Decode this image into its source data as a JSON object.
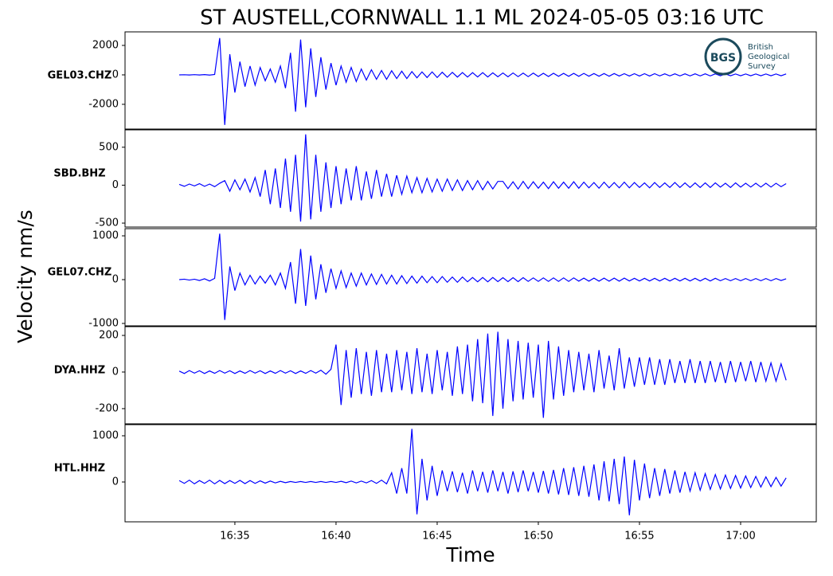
{
  "chart_data": {
    "type": "line",
    "title": "ST AUSTELL,CORNWALL 1.1 ML   2024-05-05 03:16 UTC",
    "xlabel": "Time",
    "ylabel": "Velocity nm/s",
    "color": "#0000ff",
    "logo": {
      "abbr": "BGS",
      "name": [
        "British",
        "Geological",
        "Survey"
      ]
    },
    "xlim": [
      989.57,
      1023.74
    ],
    "xticks": [
      {
        "value": 995,
        "label": "16:35"
      },
      {
        "value": 1000,
        "label": "16:40"
      },
      {
        "value": 1005,
        "label": "16:45"
      },
      {
        "value": 1010,
        "label": "16:50"
      },
      {
        "value": 1015,
        "label": "16:55"
      },
      {
        "value": 1020,
        "label": "17:00"
      }
    ],
    "x": [
      992.25,
      992.5,
      992.75,
      993,
      993.25,
      993.5,
      993.75,
      994,
      994.25,
      994.5,
      994.75,
      995,
      995.25,
      995.5,
      995.75,
      996,
      996.25,
      996.5,
      996.75,
      997,
      997.25,
      997.5,
      997.75,
      998,
      998.25,
      998.5,
      998.75,
      999,
      999.25,
      999.5,
      999.75,
      1000,
      1000.25,
      1000.5,
      1000.75,
      1001,
      1001.25,
      1001.5,
      1001.75,
      1002,
      1002.25,
      1002.5,
      1002.75,
      1003,
      1003.25,
      1003.5,
      1003.75,
      1004,
      1004.25,
      1004.5,
      1004.75,
      1005,
      1005.25,
      1005.5,
      1005.75,
      1006,
      1006.25,
      1006.5,
      1006.75,
      1007,
      1007.25,
      1007.5,
      1007.75,
      1008,
      1008.25,
      1008.5,
      1008.75,
      1009,
      1009.25,
      1009.5,
      1009.75,
      1010,
      1010.25,
      1010.5,
      1010.75,
      1011,
      1011.25,
      1011.5,
      1011.75,
      1012,
      1012.25,
      1012.5,
      1012.75,
      1013,
      1013.25,
      1013.5,
      1013.75,
      1014,
      1014.25,
      1014.5,
      1014.75,
      1015,
      1015.25,
      1015.5,
      1015.75,
      1016,
      1016.25,
      1016.5,
      1016.75,
      1017,
      1017.25,
      1017.5,
      1017.75,
      1018,
      1018.25,
      1018.5,
      1018.75,
      1019,
      1019.25,
      1019.5,
      1019.75,
      1020,
      1020.25,
      1020.5,
      1020.75,
      1021,
      1021.25,
      1021.5,
      1021.75,
      1022,
      1022.25
    ],
    "panels": [
      {
        "label": "GEL03.CHZ",
        "ylim": [
          -3680,
          2920
        ],
        "yticks": [
          -2000,
          0,
          2000
        ],
        "values": [
          0,
          10,
          -10,
          15,
          -10,
          20,
          -15,
          30,
          2500,
          -3400,
          1400,
          -1200,
          900,
          -800,
          600,
          -700,
          500,
          -400,
          400,
          -500,
          600,
          -900,
          1500,
          -2500,
          2400,
          -2200,
          1800,
          -1500,
          1200,
          -1000,
          800,
          -700,
          600,
          -500,
          500,
          -450,
          400,
          -350,
          350,
          -300,
          300,
          -300,
          280,
          -250,
          250,
          -250,
          220,
          -200,
          200,
          -180,
          200,
          -180,
          180,
          -160,
          170,
          -150,
          160,
          -150,
          150,
          -140,
          150,
          -140,
          140,
          -130,
          130,
          -130,
          130,
          -120,
          120,
          -120,
          120,
          -110,
          110,
          -110,
          110,
          -100,
          100,
          -100,
          100,
          -100,
          100,
          -90,
          90,
          -90,
          90,
          -90,
          90,
          -80,
          80,
          -80,
          80,
          -80,
          80,
          -80,
          80,
          -70,
          70,
          -70,
          70,
          -70,
          70,
          -70,
          70,
          -70,
          70,
          -70,
          70,
          -60,
          60,
          -60,
          60,
          -60,
          60,
          -60,
          60,
          -60,
          60,
          -60,
          60,
          -60,
          60
        ]
      },
      {
        "label": "SBD.BHZ",
        "ylim": [
          -552,
          729
        ],
        "yticks": [
          -500,
          0,
          500
        ],
        "values": [
          10,
          -15,
          15,
          -10,
          20,
          -15,
          15,
          -20,
          25,
          60,
          -80,
          70,
          -60,
          80,
          -90,
          100,
          -150,
          200,
          -250,
          220,
          -300,
          350,
          -350,
          400,
          -480,
          670,
          -450,
          400,
          -350,
          300,
          -300,
          250,
          -250,
          220,
          -200,
          250,
          -200,
          180,
          -180,
          200,
          -150,
          150,
          -150,
          130,
          -120,
          120,
          -100,
          100,
          -100,
          90,
          -90,
          80,
          -80,
          80,
          -70,
          70,
          -70,
          60,
          -60,
          60,
          -60,
          50,
          -50,
          50,
          50,
          -45,
          45,
          -50,
          50,
          -45,
          45,
          -40,
          40,
          -45,
          45,
          -40,
          40,
          -40,
          45,
          -40,
          40,
          -35,
          35,
          -40,
          40,
          -35,
          35,
          -35,
          40,
          -35,
          35,
          -30,
          30,
          -35,
          35,
          -30,
          30,
          -30,
          35,
          -30,
          30,
          -30,
          30,
          -30,
          30,
          -30,
          30,
          -25,
          25,
          -30,
          30,
          -25,
          25,
          -25,
          25,
          -25,
          25,
          -25,
          25,
          -20,
          20
        ]
      },
      {
        "label": "GEL07.CHZ",
        "ylim": [
          -1055,
          1164
        ],
        "yticks": [
          -1000,
          0,
          1000
        ],
        "values": [
          0,
          10,
          -10,
          10,
          -20,
          20,
          -30,
          30,
          1050,
          -920,
          300,
          -250,
          150,
          -120,
          100,
          -100,
          80,
          -80,
          100,
          -120,
          150,
          -200,
          400,
          -550,
          700,
          -600,
          550,
          -450,
          350,
          -300,
          250,
          -200,
          200,
          -180,
          150,
          -150,
          150,
          -120,
          130,
          -110,
          120,
          -100,
          100,
          -100,
          90,
          -90,
          80,
          -80,
          80,
          -70,
          70,
          -70,
          70,
          -60,
          60,
          -60,
          60,
          -50,
          50,
          -50,
          50,
          -50,
          50,
          -45,
          45,
          -45,
          45,
          -45,
          45,
          -40,
          40,
          -40,
          40,
          -40,
          40,
          -40,
          40,
          -40,
          40,
          -35,
          35,
          -35,
          35,
          -35,
          35,
          -35,
          35,
          -35,
          35,
          -30,
          30,
          -30,
          30,
          -30,
          30,
          -30,
          30,
          -30,
          30,
          -30,
          30,
          -30,
          30,
          -30,
          30,
          -30,
          30,
          -25,
          25,
          -25,
          25,
          -25,
          25,
          -25,
          25,
          -25,
          25,
          -25,
          25,
          -20,
          20
        ]
      },
      {
        "label": "DYA.HHZ",
        "ylim": [
          -283,
          248
        ],
        "yticks": [
          -200,
          0,
          200
        ],
        "values": [
          5,
          -8,
          8,
          -6,
          7,
          -8,
          6,
          -7,
          8,
          -6,
          7,
          -8,
          6,
          -7,
          8,
          -6,
          7,
          -8,
          6,
          -7,
          8,
          -6,
          7,
          -8,
          6,
          -7,
          8,
          -6,
          10,
          -12,
          15,
          150,
          -180,
          120,
          -140,
          130,
          -120,
          110,
          -130,
          120,
          -110,
          100,
          -110,
          120,
          -100,
          110,
          -120,
          130,
          -110,
          100,
          -120,
          120,
          -100,
          110,
          -130,
          140,
          -120,
          150,
          -160,
          180,
          -170,
          210,
          -240,
          220,
          -200,
          180,
          -160,
          170,
          -150,
          160,
          -140,
          150,
          -250,
          170,
          -150,
          140,
          -130,
          120,
          -110,
          110,
          -100,
          100,
          -110,
          120,
          -90,
          90,
          -100,
          130,
          -90,
          80,
          -80,
          80,
          -70,
          80,
          -70,
          70,
          -70,
          70,
          -60,
          60,
          -60,
          70,
          -60,
          60,
          -60,
          60,
          -55,
          55,
          -60,
          60,
          -55,
          55,
          -50,
          60,
          -55,
          55,
          -50,
          50,
          -50,
          45,
          -45
        ]
      },
      {
        "label": "HTL.HHZ",
        "ylim": [
          -862,
          1241
        ],
        "yticks": [
          0,
          1000
        ],
        "values": [
          30,
          -30,
          40,
          -40,
          30,
          -30,
          40,
          -40,
          35,
          -35,
          30,
          -30,
          35,
          -35,
          30,
          -30,
          25,
          -25,
          20,
          -20,
          15,
          -15,
          10,
          -10,
          10,
          -10,
          10,
          -10,
          10,
          -10,
          10,
          -10,
          15,
          -15,
          20,
          -20,
          20,
          -20,
          30,
          -30,
          40,
          -40,
          200,
          -250,
          300,
          -250,
          1150,
          -700,
          500,
          -400,
          350,
          -300,
          250,
          -200,
          230,
          -220,
          200,
          -250,
          250,
          -200,
          220,
          -230,
          250,
          -200,
          220,
          -250,
          230,
          -220,
          250,
          -200,
          220,
          -230,
          240,
          -250,
          260,
          -270,
          300,
          -280,
          320,
          -300,
          350,
          -320,
          380,
          -400,
          450,
          -420,
          500,
          -480,
          550,
          -720,
          480,
          -400,
          400,
          -350,
          300,
          -300,
          280,
          -250,
          250,
          -230,
          220,
          -200,
          200,
          -180,
          180,
          -160,
          160,
          -150,
          150,
          -140,
          140,
          -130,
          130,
          -120,
          120,
          -110,
          110,
          -100,
          100,
          -90,
          90
        ]
      }
    ]
  }
}
